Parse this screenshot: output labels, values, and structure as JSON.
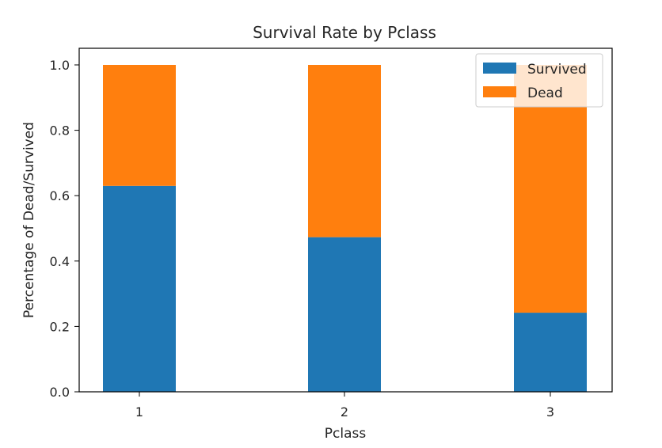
{
  "chart_data": {
    "type": "bar",
    "stacked": true,
    "title": "Survival Rate by Pclass",
    "xlabel": "Pclass",
    "ylabel": "Percentage of Dead/Survived",
    "categories": [
      "1",
      "2",
      "3"
    ],
    "series": [
      {
        "name": "Survived",
        "color": "#1f77b4",
        "values": [
          0.63,
          0.473,
          0.242
        ]
      },
      {
        "name": "Dead",
        "color": "#ff7f0e",
        "values": [
          0.37,
          0.527,
          0.758
        ]
      }
    ],
    "ylim": [
      0,
      1.0
    ],
    "yticks": [
      "0.0",
      "0.2",
      "0.4",
      "0.6",
      "0.8",
      "1.0"
    ],
    "grid": false,
    "legend_position": "top-right"
  }
}
